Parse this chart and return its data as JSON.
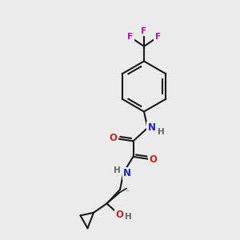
{
  "background_color": "#ebebeb",
  "atom_colors": {
    "C": "#000000",
    "N": "#2222cc",
    "O": "#cc2222",
    "F": "#cc00cc",
    "H": "#666666"
  },
  "bond_color": "#1a1a1a",
  "bond_width": 1.5
}
